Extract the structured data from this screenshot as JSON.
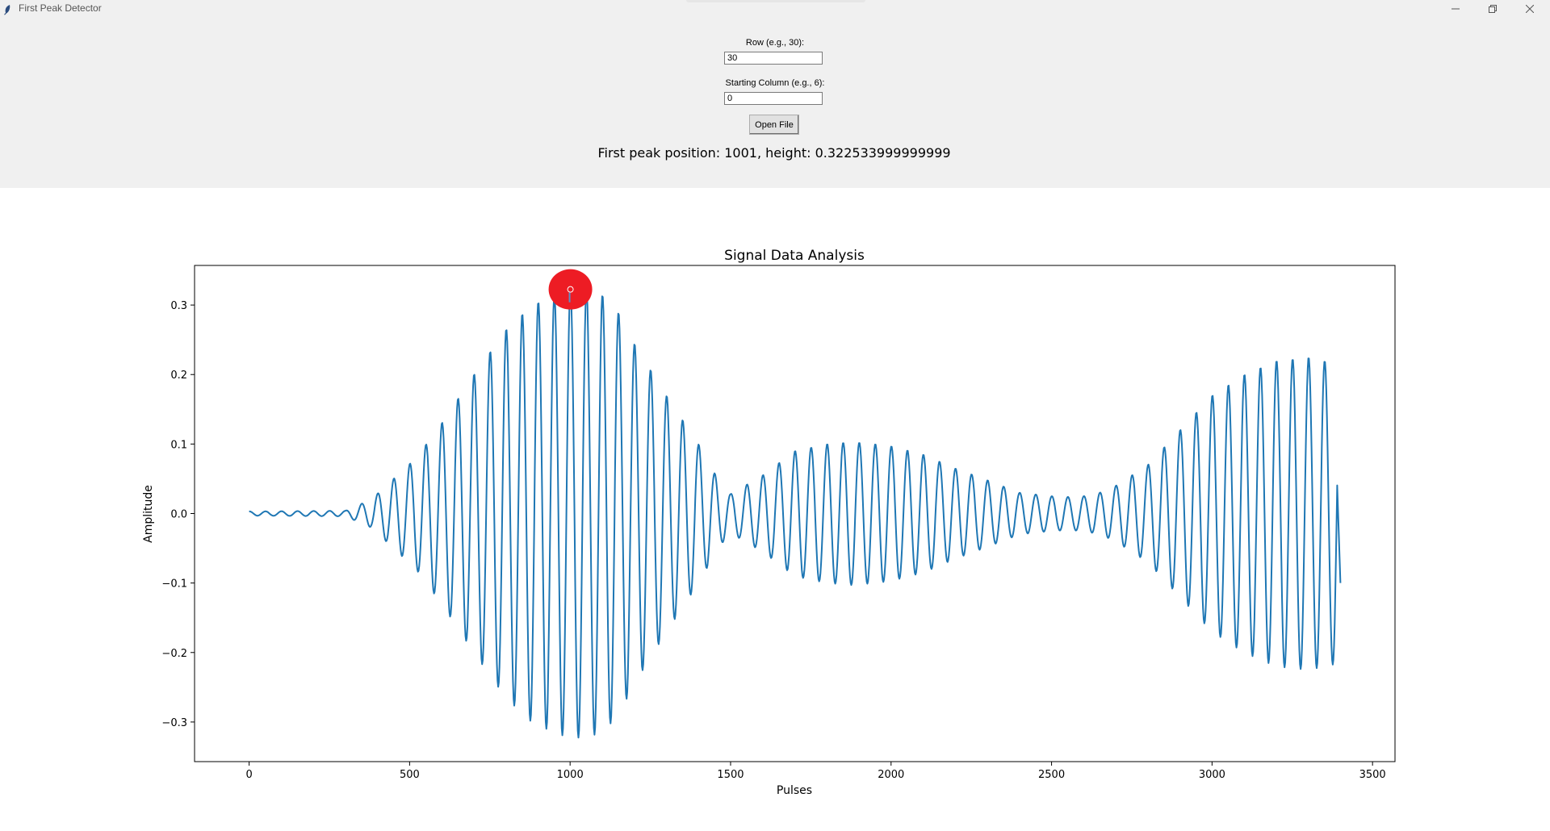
{
  "window": {
    "title": "First Peak Detector",
    "icon": "feather-icon",
    "controls": [
      "minimize-icon",
      "restore-icon",
      "close-icon"
    ]
  },
  "form": {
    "row_label": "Row (e.g., 30):",
    "row_value": "30",
    "col_label": "Starting Column (e.g., 6):",
    "col_value": "0",
    "open_button": "Open File"
  },
  "result_text": "First peak position: 1001, height: 0.322533999999999",
  "colors": {
    "line": "#1f77b4",
    "marker": "#ed1c24",
    "panel_bg": "#f0f0f0"
  },
  "chart_data": {
    "type": "line",
    "title": "Signal Data Analysis",
    "xlabel": "Pulses",
    "ylabel": "Amplitude",
    "xlim": [
      -170,
      3570
    ],
    "ylim": [
      -0.357,
      0.357
    ],
    "xticks": [
      0,
      500,
      1000,
      1500,
      2000,
      2500,
      3000,
      3500
    ],
    "yticks": [
      -0.3,
      -0.2,
      -0.1,
      0.0,
      0.1,
      0.2,
      0.3
    ],
    "ytick_labels": [
      "−0.3",
      "−0.2",
      "−0.1",
      "0.0",
      "0.1",
      "0.2",
      "0.3"
    ],
    "grid": false,
    "series": [
      {
        "period": 50,
        "x_range": [
          0,
          3400
        ],
        "end_value": -0.1,
        "envelope": {
          "x": [
            0,
            300,
            380,
            450,
            520,
            600,
            700,
            800,
            880,
            950,
            1000,
            1050,
            1100,
            1150,
            1200,
            1300,
            1400,
            1460,
            1500,
            1600,
            1700,
            1800,
            1880,
            1950,
            2000,
            2100,
            2200,
            2300,
            2400,
            2500,
            2550,
            2600,
            2650,
            2700,
            2800,
            2900,
            3000,
            3100,
            3200,
            3300,
            3350,
            3400
          ],
          "amplitude": [
            0.003,
            0.004,
            0.02,
            0.05,
            0.08,
            0.13,
            0.2,
            0.265,
            0.3,
            0.315,
            0.323,
            0.322,
            0.315,
            0.29,
            0.245,
            0.17,
            0.1,
            0.05,
            0.028,
            0.055,
            0.09,
            0.1,
            0.103,
            0.1,
            0.097,
            0.085,
            0.065,
            0.048,
            0.03,
            0.025,
            0.024,
            0.025,
            0.03,
            0.04,
            0.07,
            0.12,
            0.17,
            0.2,
            0.22,
            0.225,
            0.22,
            0.215
          ]
        }
      }
    ],
    "peak_marker": {
      "x": 1001,
      "y": 0.322533999999999
    }
  }
}
